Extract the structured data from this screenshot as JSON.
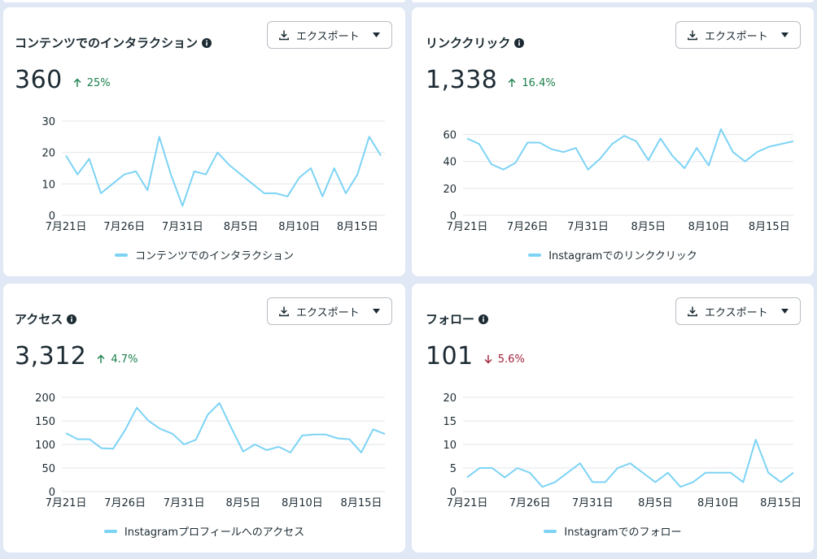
{
  "colors": {
    "line": "#7dd3f5",
    "grid": "#e3e6ea",
    "up": "#1a7f4b",
    "down": "#a3203b"
  },
  "x_ticks": [
    "7月21日",
    "7月26日",
    "7月31日",
    "8月5日",
    "8月10日",
    "8月15日"
  ],
  "export_label": "エクスポート",
  "cards": [
    {
      "title": "コンテンツでのインタラクション",
      "value": "360",
      "change": "25%",
      "direction": "up",
      "legend": "コンテンツでのインタラクション"
    },
    {
      "title": "リンククリック",
      "value": "1,338",
      "change": "16.4%",
      "direction": "up",
      "legend": "Instagramでのリンククリック"
    },
    {
      "title": "アクセス",
      "value": "3,312",
      "change": "4.7%",
      "direction": "up",
      "legend": "Instagramプロフィールへのアクセス"
    },
    {
      "title": "フォロー",
      "value": "101",
      "change": "5.6%",
      "direction": "down",
      "legend": "Instagramでのフォロー"
    }
  ],
  "chart_data": [
    {
      "type": "line",
      "title": "コンテンツでのインタラクション",
      "x_tick_labels": [
        "7月21日",
        "7月26日",
        "7月31日",
        "8月5日",
        "8月10日",
        "8月15日"
      ],
      "y_ticks": [
        0,
        10,
        20,
        30
      ],
      "ylim": [
        0,
        30
      ],
      "legend_position": "bottom",
      "series": [
        {
          "name": "コンテンツでのインタラクション",
          "values": [
            19,
            13,
            18,
            7,
            10,
            13,
            14,
            8,
            25,
            13,
            3,
            14,
            13,
            20,
            16,
            13,
            10,
            7,
            7,
            6,
            12,
            15,
            6,
            15,
            7,
            13,
            25,
            19
          ]
        }
      ]
    },
    {
      "type": "line",
      "title": "リンククリック",
      "x_tick_labels": [
        "7月21日",
        "7月26日",
        "7月31日",
        "8月5日",
        "8月10日",
        "8月15日"
      ],
      "y_ticks": [
        0,
        20,
        40,
        60
      ],
      "ylim": [
        0,
        70
      ],
      "legend_position": "bottom",
      "series": [
        {
          "name": "Instagramでのリンククリック",
          "values": [
            57,
            53,
            38,
            34,
            39,
            54,
            54,
            49,
            47,
            50,
            34,
            42,
            53,
            59,
            55,
            41,
            57,
            44,
            35,
            50,
            37,
            64,
            47,
            40,
            47,
            51,
            53,
            55
          ]
        }
      ]
    },
    {
      "type": "line",
      "title": "アクセス",
      "x_tick_labels": [
        "7月21日",
        "7月26日",
        "7月31日",
        "8月5日",
        "8月10日",
        "8月15日"
      ],
      "y_ticks": [
        0,
        50,
        100,
        150,
        200
      ],
      "ylim": [
        0,
        200
      ],
      "legend_position": "bottom",
      "series": [
        {
          "name": "Instagramプロフィールへのアクセス",
          "values": [
            124,
            111,
            111,
            92,
            91,
            130,
            178,
            150,
            133,
            123,
            100,
            110,
            163,
            188,
            135,
            85,
            100,
            88,
            95,
            83,
            119,
            121,
            121,
            113,
            111,
            83,
            132,
            122
          ]
        }
      ]
    },
    {
      "type": "line",
      "title": "フォロー",
      "x_tick_labels": [
        "7月21日",
        "7月26日",
        "7月31日",
        "8月5日",
        "8月10日",
        "8月15日"
      ],
      "y_ticks": [
        0,
        5,
        10,
        15,
        20
      ],
      "ylim": [
        0,
        20
      ],
      "legend_position": "bottom",
      "series": [
        {
          "name": "Instagramでのフォロー",
          "values": [
            3,
            5,
            5,
            3,
            5,
            4,
            1,
            2,
            4,
            6,
            2,
            2,
            5,
            6,
            4,
            2,
            4,
            1,
            2,
            4,
            4,
            4,
            2,
            11,
            4,
            2,
            4
          ]
        }
      ]
    }
  ]
}
